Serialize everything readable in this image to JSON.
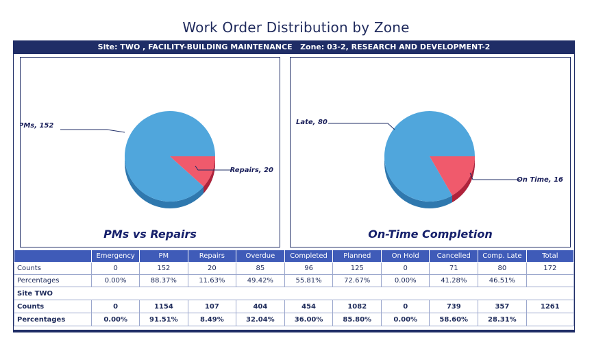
{
  "title": "Work Order Distribution by Zone",
  "banner": "Site: TWO , FACILITY-BUILDING MAINTENANCE   Zone: 03-2, RESEARCH AND DEVELOPMENT-2",
  "colors": {
    "blue": "#50a6dc",
    "blue_dark": "#2f78ae",
    "red": "#f05a6c",
    "red_dark": "#b0223a",
    "navy": "#1f2d66"
  },
  "chart_data": [
    {
      "type": "pie",
      "title": "PMs vs Repairs",
      "slices": [
        {
          "label": "PMs",
          "value": 152,
          "text": "PMs, 152"
        },
        {
          "label": "Repairs",
          "value": 20,
          "text": "Repairs, 20"
        }
      ]
    },
    {
      "type": "pie",
      "title": "On-Time Completion",
      "slices": [
        {
          "label": "Late",
          "value": 80,
          "text": "Late, 80"
        },
        {
          "label": "On Time",
          "value": 16,
          "text": "On Time, 16"
        }
      ]
    }
  ],
  "table": {
    "headers": [
      "",
      "Emergency",
      "PM",
      "Repairs",
      "Overdue",
      "Completed",
      "Planned",
      "On Hold",
      "Cancelled",
      "Comp. Late",
      "Total"
    ],
    "zone_rows": [
      [
        "Counts",
        "0",
        "152",
        "20",
        "85",
        "96",
        "125",
        "0",
        "71",
        "80",
        "172"
      ],
      [
        "Percentages",
        "0.00%",
        "88.37%",
        "11.63%",
        "49.42%",
        "55.81%",
        "72.67%",
        "0.00%",
        "41.28%",
        "46.51%",
        ""
      ]
    ],
    "site_label": "Site TWO",
    "site_rows": [
      [
        "Counts",
        "0",
        "1154",
        "107",
        "404",
        "454",
        "1082",
        "0",
        "739",
        "357",
        "1261"
      ],
      [
        "Percentages",
        "0.00%",
        "91.51%",
        "8.49%",
        "32.04%",
        "36.00%",
        "85.80%",
        "0.00%",
        "58.60%",
        "28.31%",
        ""
      ]
    ]
  }
}
